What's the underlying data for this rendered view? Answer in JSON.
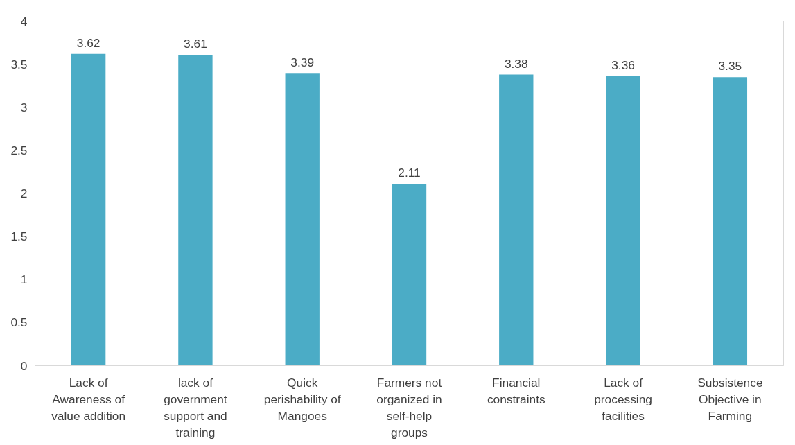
{
  "chart_data": {
    "type": "bar",
    "categories": [
      "Lack of\nAwareness of\nvalue addition",
      "lack of\ngovernment\nsupport and\ntraining",
      "Quick\nperishability of\nMangoes",
      "Farmers not\norganized in\nself-help\ngroups",
      "Financial\nconstraints",
      "Lack of\nprocessing\nfacilities",
      "Subsistence\nObjective in\nFarming"
    ],
    "values": [
      3.62,
      3.61,
      3.39,
      2.11,
      3.38,
      3.36,
      3.35
    ],
    "color": "#4bacc6",
    "ylim": [
      0,
      4
    ],
    "yticks": [
      0,
      0.5,
      1,
      1.5,
      2,
      2.5,
      3,
      3.5,
      4
    ],
    "data_labels": true,
    "grid": false
  }
}
